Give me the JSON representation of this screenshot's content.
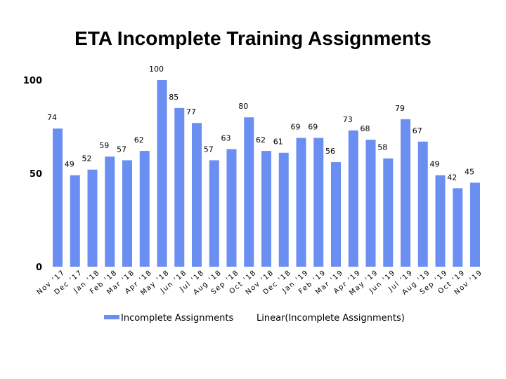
{
  "chart_data": {
    "type": "bar",
    "title": "ETA Incomplete Training Assignments",
    "categories": [
      "Nov '17",
      "Dec '17",
      "Jan '18",
      "Feb '18",
      "Mar '18",
      "Apr '18",
      "May '18",
      "Jun '18",
      "Jul '18",
      "Aug '18",
      "Sep '18",
      "Oct '18",
      "Nov '18",
      "Dec '18",
      "Jan '19",
      "Feb '19",
      "Mar '19",
      "Apr '19",
      "May '19",
      "Jun '19",
      "Jul '19",
      "Aug '19",
      "Sep '19",
      "Oct '19",
      "Nov '19"
    ],
    "series": [
      {
        "name": "Incomplete Assignments",
        "values": [
          74,
          49,
          52,
          59,
          57,
          62,
          100,
          85,
          77,
          57,
          63,
          80,
          62,
          61,
          69,
          69,
          56,
          73,
          68,
          58,
          79,
          67,
          49,
          42,
          45
        ],
        "color": "#6b8ef2"
      }
    ],
    "yticks": [
      0,
      50,
      100
    ],
    "ylim": [
      0,
      100
    ],
    "grid": false,
    "legend": {
      "placement": "bottom",
      "items": [
        {
          "label": "Incomplete Assignments",
          "color": "#6b8ef2"
        },
        {
          "label": "Linear(Incomplete Assignments)",
          "color": "#6b8ef2"
        }
      ]
    }
  }
}
